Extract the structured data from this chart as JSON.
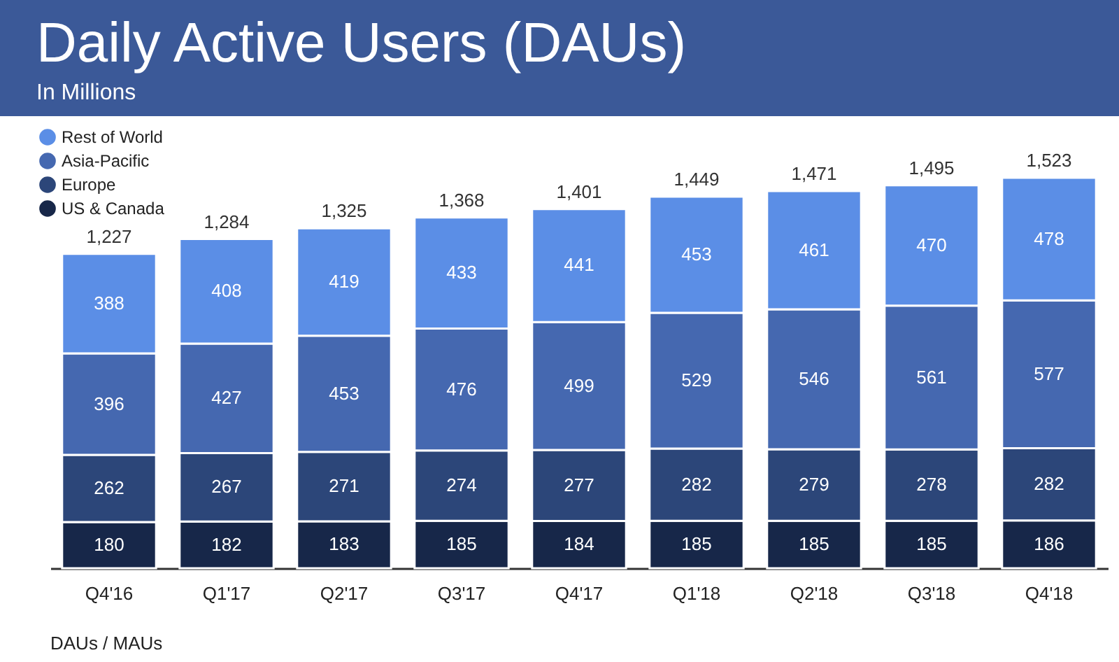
{
  "chart_data": {
    "type": "bar",
    "title": "Daily Active Users (DAUs)",
    "subtitle": "In Millions",
    "categories": [
      "Q4'16",
      "Q1'17",
      "Q2'17",
      "Q3'17",
      "Q4'17",
      "Q1'18",
      "Q2'18",
      "Q3'18",
      "Q4'18"
    ],
    "stacked": true,
    "data_labels": true,
    "legend": "top left",
    "series": [
      {
        "name": "US & Canada",
        "color": "#172749",
        "values": [
          180,
          182,
          183,
          185,
          184,
          185,
          185,
          185,
          186
        ]
      },
      {
        "name": "Europe",
        "color": "#2c4679",
        "values": [
          262,
          267,
          271,
          274,
          277,
          282,
          279,
          278,
          282
        ]
      },
      {
        "name": "Asia-Pacific",
        "color": "#4568b0",
        "values": [
          396,
          427,
          453,
          476,
          499,
          529,
          546,
          561,
          577
        ]
      },
      {
        "name": "Rest of World",
        "color": "#5b8ee6",
        "values": [
          388,
          408,
          419,
          433,
          441,
          453,
          461,
          470,
          478
        ]
      }
    ],
    "totals": [
      "1,227",
      "1,284",
      "1,325",
      "1,368",
      "1,401",
      "1,449",
      "1,471",
      "1,495",
      "1,523"
    ],
    "annotations": [
      "DAUs / MAUs"
    ]
  }
}
